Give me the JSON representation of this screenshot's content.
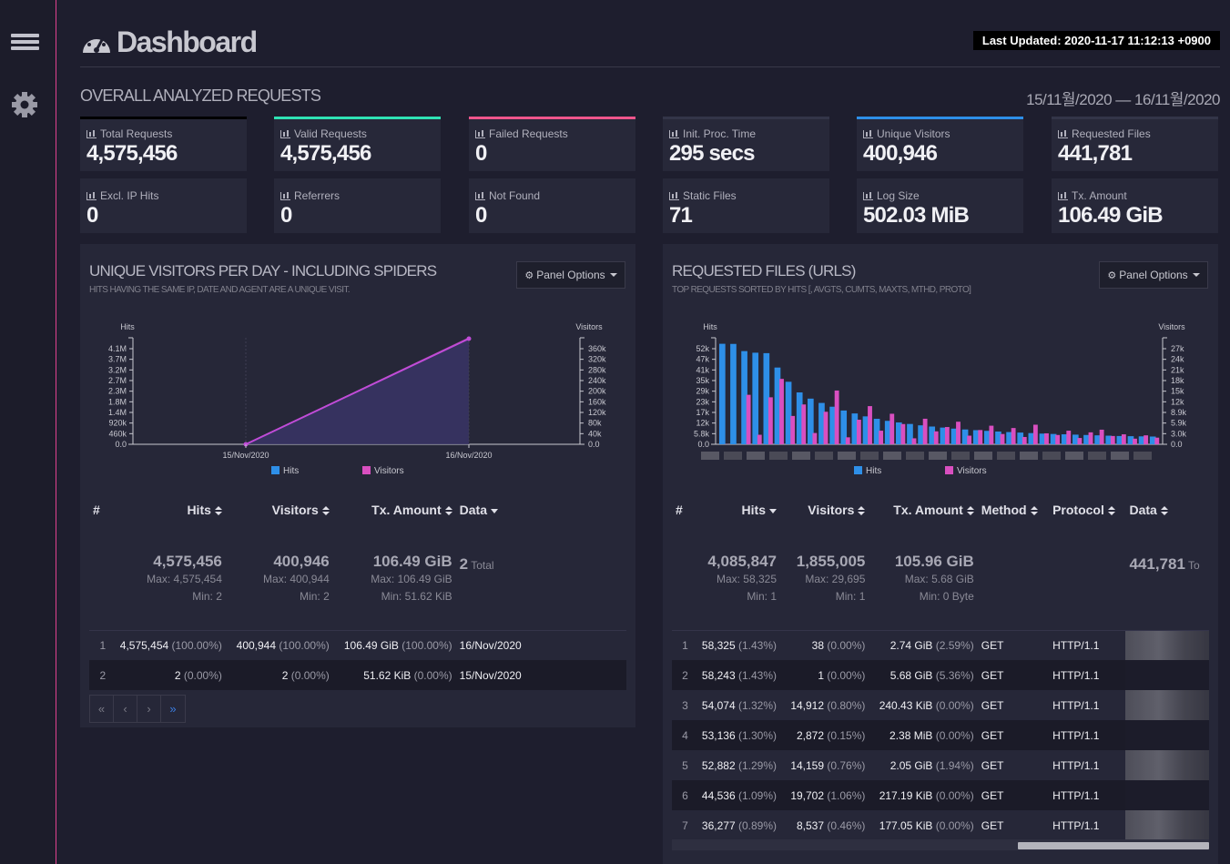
{
  "header": {
    "title": "Dashboard",
    "last_updated": "Last Updated: 2020-11-17 11:12:13 +0900"
  },
  "overview": {
    "title": "OVERALL ANALYZED REQUESTS",
    "date_range": "15/11월/2020 — 16/11월/2020",
    "cards": [
      {
        "label": "Total Requests",
        "value": "4,575,456",
        "bar_color": "#000000"
      },
      {
        "label": "Valid Requests",
        "value": "4,575,456",
        "bar_color": "#2fe3b4"
      },
      {
        "label": "Failed Requests",
        "value": "0",
        "bar_color": "#f0558c"
      },
      {
        "label": "Init. Proc. Time",
        "value": "295 secs",
        "bar_color": "#333548"
      },
      {
        "label": "Unique Visitors",
        "value": "400,946",
        "bar_color": "#2e8fe8"
      },
      {
        "label": "Requested Files",
        "value": "441,781",
        "bar_color": "#333548"
      },
      {
        "label": "Excl. IP Hits",
        "value": "0",
        "bar_color": "#333548"
      },
      {
        "label": "Referrers",
        "value": "0",
        "bar_color": "#333548"
      },
      {
        "label": "Not Found",
        "value": "0",
        "bar_color": "#333548"
      },
      {
        "label": "Static Files",
        "value": "71",
        "bar_color": "#333548"
      },
      {
        "label": "Log Size",
        "value": "502.03 MiB",
        "bar_color": "#333548"
      },
      {
        "label": "Tx. Amount",
        "value": "106.49 GiB",
        "bar_color": "#333548"
      }
    ]
  },
  "visitors_panel": {
    "title": "UNIQUE VISITORS PER DAY - INCLUDING SPIDERS",
    "subtitle": "HITS HAVING THE SAME IP, DATE AND AGENT ARE A UNIQUE VISIT.",
    "options_label": "Panel Options",
    "table": {
      "headers": [
        "#",
        "Hits",
        "Visitors",
        "Tx. Amount",
        "Data"
      ],
      "summary": {
        "hits": "4,575,456",
        "hits_max": "Max: 4,575,454",
        "hits_min": "Min: 2",
        "visitors": "400,946",
        "visitors_max": "Max: 400,944",
        "visitors_min": "Min: 2",
        "tx": "106.49 GiB",
        "tx_max": "Max: 106.49 GiB",
        "tx_min": "Min: 51.62 KiB",
        "data_count": "2",
        "data_label": "Total"
      },
      "rows": [
        {
          "num": "1",
          "hits": "4,575,454",
          "hits_pct": "(100.00%)",
          "visitors": "400,944",
          "visitors_pct": "(100.00%)",
          "tx": "106.49 GiB",
          "tx_pct": "(100.00%)",
          "data": "16/Nov/2020"
        },
        {
          "num": "2",
          "hits": "2",
          "hits_pct": "(0.00%)",
          "visitors": "2",
          "visitors_pct": "(0.00%)",
          "tx": "51.62 KiB",
          "tx_pct": "(0.00%)",
          "data": "15/Nov/2020"
        }
      ]
    },
    "pager": [
      "«",
      "‹",
      "›",
      "»"
    ]
  },
  "files_panel": {
    "title": "REQUESTED FILES (URLS)",
    "subtitle": "TOP REQUESTS SORTED BY HITS [, AVGTS, CUMTS, MAXTS, MTHD, PROTO]",
    "options_label": "Panel Options",
    "table": {
      "headers": [
        "#",
        "Hits",
        "Visitors",
        "Tx. Amount",
        "Method",
        "Protocol",
        "Data"
      ],
      "summary": {
        "hits": "4,085,847",
        "hits_max": "Max: 58,325",
        "hits_min": "Min: 1",
        "visitors": "1,855,005",
        "visitors_max": "Max: 29,695",
        "visitors_min": "Min: 1",
        "tx": "105.96 GiB",
        "tx_max": "Max: 5.68 GiB",
        "tx_min": "Min: 0 Byte",
        "data_count": "441,781",
        "data_label": "To"
      },
      "rows": [
        {
          "num": "1",
          "hits": "58,325",
          "hits_pct": "(1.43%)",
          "visitors": "38",
          "visitors_pct": "(0.00%)",
          "tx": "2.74 GiB",
          "tx_pct": "(2.59%)",
          "method": "GET",
          "protocol": "HTTP/1.1"
        },
        {
          "num": "2",
          "hits": "58,243",
          "hits_pct": "(1.43%)",
          "visitors": "1",
          "visitors_pct": "(0.00%)",
          "tx": "5.68 GiB",
          "tx_pct": "(5.36%)",
          "method": "GET",
          "protocol": "HTTP/1.1"
        },
        {
          "num": "3",
          "hits": "54,074",
          "hits_pct": "(1.32%)",
          "visitors": "14,912",
          "visitors_pct": "(0.80%)",
          "tx": "240.43 KiB",
          "tx_pct": "(0.00%)",
          "method": "GET",
          "protocol": "HTTP/1.1"
        },
        {
          "num": "4",
          "hits": "53,136",
          "hits_pct": "(1.30%)",
          "visitors": "2,872",
          "visitors_pct": "(0.15%)",
          "tx": "2.38 MiB",
          "tx_pct": "(0.00%)",
          "method": "GET",
          "protocol": "HTTP/1.1"
        },
        {
          "num": "5",
          "hits": "52,882",
          "hits_pct": "(1.29%)",
          "visitors": "14,159",
          "visitors_pct": "(0.76%)",
          "tx": "2.05 GiB",
          "tx_pct": "(1.94%)",
          "method": "GET",
          "protocol": "HTTP/1.1"
        },
        {
          "num": "6",
          "hits": "44,536",
          "hits_pct": "(1.09%)",
          "visitors": "19,702",
          "visitors_pct": "(1.06%)",
          "tx": "217.19 KiB",
          "tx_pct": "(0.00%)",
          "method": "GET",
          "protocol": "HTTP/1.1"
        },
        {
          "num": "7",
          "hits": "36,277",
          "hits_pct": "(0.89%)",
          "visitors": "8,537",
          "visitors_pct": "(0.46%)",
          "tx": "177.05 KiB",
          "tx_pct": "(0.00%)",
          "method": "GET",
          "protocol": "HTTP/1.1"
        }
      ]
    }
  },
  "colors": {
    "hits": "#2e8fe8",
    "visitors": "#d94fc0",
    "accent_line": "#e0418f"
  },
  "chart_data": [
    {
      "type": "area",
      "x": [
        "15/Nov/2020",
        "16/Nov/2020"
      ],
      "series": [
        {
          "name": "Hits",
          "values": [
            2,
            4575454
          ]
        },
        {
          "name": "Visitors",
          "values": [
            2,
            400944
          ]
        }
      ],
      "y_left_label": "Hits",
      "y_right_label": "Visitors",
      "y_left_ticks": [
        "4.1M",
        "3.7M",
        "3.2M",
        "2.7M",
        "2.3M",
        "1.8M",
        "1.4M",
        "920k",
        "460k",
        "0.0"
      ],
      "y_right_ticks": [
        "360k",
        "320k",
        "280k",
        "240k",
        "200k",
        "160k",
        "120k",
        "80k",
        "40k",
        "0.0"
      ],
      "y_left_max": 4575454,
      "y_right_max": 400944,
      "legend": [
        "Hits",
        "Visitors"
      ]
    },
    {
      "type": "bar",
      "series": [
        {
          "name": "Hits",
          "values": [
            58325,
            58243,
            54074,
            53136,
            52882,
            44536,
            36277,
            30100,
            26500,
            24000,
            21800,
            19600,
            17900,
            16200,
            14800,
            13600,
            12700,
            11800,
            11000,
            10300,
            9700,
            9100,
            8600,
            8200,
            7800,
            7400,
            7100,
            6800,
            6500,
            6200,
            6000,
            5800,
            5600,
            5400,
            5200,
            5000,
            4800,
            4700,
            4600,
            4500
          ]
        },
        {
          "name": "Visitors",
          "values": [
            38,
            1,
            14912,
            2872,
            14159,
            19702,
            8537,
            12000,
            3400,
            9800,
            16200,
            2100,
            7400,
            11500,
            4100,
            9200,
            6100,
            1800,
            7700,
            3900,
            5200,
            6800,
            2600,
            4300,
            5600,
            3100,
            4900,
            2200,
            5900,
            3300,
            2800,
            4100,
            1900,
            3600,
            4400,
            2500,
            3000,
            1700,
            2700,
            2000
          ]
        }
      ],
      "y_left_label": "Hits",
      "y_right_label": "Visitors",
      "y_left_ticks": [
        "52k",
        "47k",
        "41k",
        "35k",
        "29k",
        "23k",
        "17k",
        "12k",
        "5.8k",
        "0.0"
      ],
      "y_right_ticks": [
        "27k",
        "24k",
        "21k",
        "18k",
        "15k",
        "12k",
        "8.9k",
        "5.9k",
        "3.0k",
        "0.0"
      ],
      "y_left_max": 58325,
      "y_right_max": 29695,
      "legend": [
        "Hits",
        "Visitors"
      ]
    }
  ]
}
